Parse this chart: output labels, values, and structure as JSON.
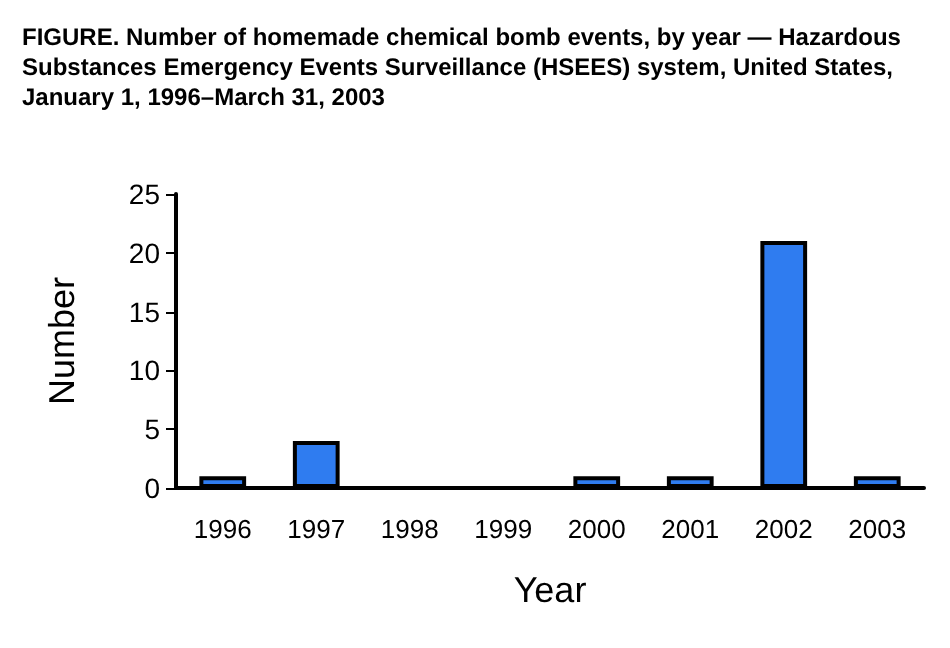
{
  "chart_data": {
    "type": "bar",
    "title": "FIGURE. Number of homemade chemical bomb events, by year — Hazardous Substances Emergency Events Surveillance (HSEES) system, United States, January 1, 1996–March 31, 2003",
    "xlabel": "Year",
    "ylabel": "Number",
    "categories": [
      "1996",
      "1997",
      "1998",
      "1999",
      "2000",
      "2001",
      "2002",
      "2003"
    ],
    "values": [
      1,
      4,
      0,
      0,
      1,
      1,
      21,
      1
    ],
    "color": "#2f7cf0",
    "ylim": [
      0,
      25
    ],
    "yticks": [
      0,
      5,
      10,
      15,
      20,
      25
    ],
    "grid": false
  }
}
